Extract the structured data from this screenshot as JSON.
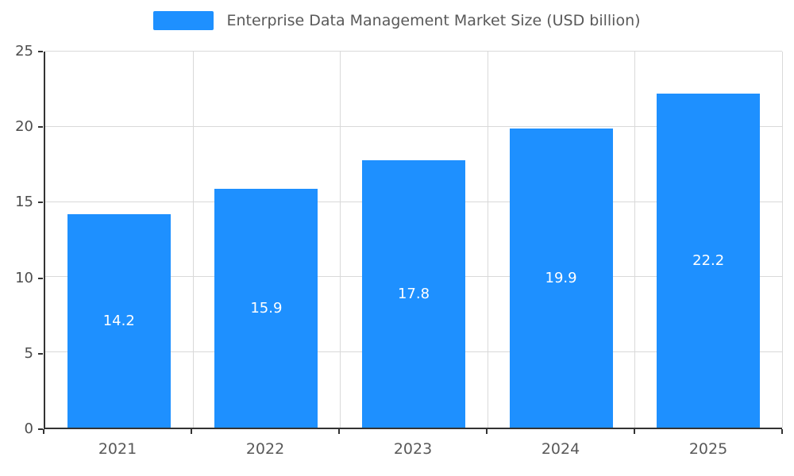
{
  "chart_data": {
    "type": "bar",
    "title": "Enterprise Data Management Market Size (USD billion)",
    "categories": [
      "2021",
      "2022",
      "2023",
      "2024",
      "2025"
    ],
    "values": [
      14.2,
      15.9,
      17.8,
      19.9,
      22.2
    ],
    "value_labels": [
      "14.2",
      "15.9",
      "17.8",
      "19.9",
      "22.2"
    ],
    "ylim": [
      0,
      25
    ],
    "yticks": [
      0,
      5,
      10,
      15,
      20,
      25
    ],
    "ylabel": "",
    "xlabel": "",
    "grid": true,
    "legend_position": "top-center",
    "bar_color": "#1E90FF",
    "grid_color": "#d9d9d9",
    "axis_color": "#333333",
    "tick_text_color": "#4d4d4d",
    "title_text_color": "#595959",
    "bar_value_text_color": "#ffffff"
  }
}
